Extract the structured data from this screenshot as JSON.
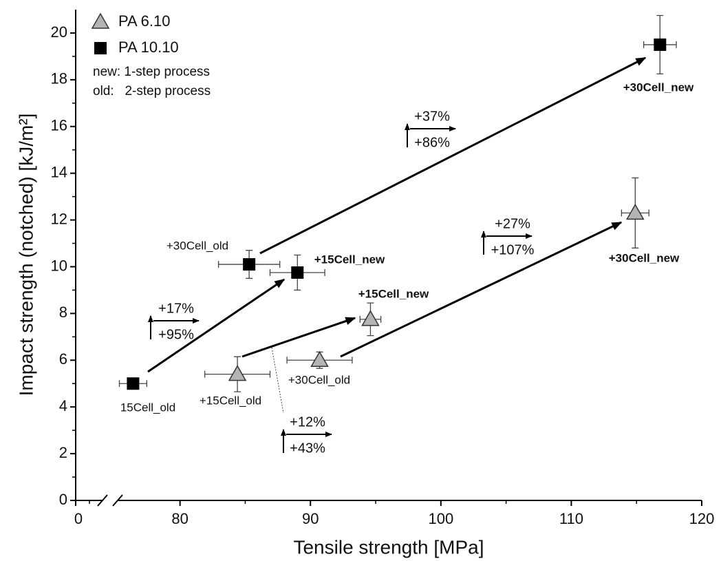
{
  "chart_data": {
    "type": "scatter",
    "x_label": "Tensile strength [MPa]",
    "y_label": "Impact strength (notched) [kJ/m²]",
    "xlim": [
      72,
      120
    ],
    "xticks": [
      80,
      90,
      100,
      110,
      120
    ],
    "x_axis_start_label": "0",
    "x_axis_break": true,
    "ylim": [
      0,
      21
    ],
    "yticks": [
      0,
      2,
      4,
      6,
      8,
      10,
      12,
      14,
      16,
      18,
      20
    ],
    "legend_position": "upper left",
    "legend_notes": [
      "new: 1-step process",
      "old:   2-step process"
    ],
    "series": [
      {
        "name": "PA 6.10",
        "marker": "triangle",
        "color": "#b4b4b4",
        "x": [
          84.4,
          90.7,
          94.6,
          114.9
        ],
        "values": [
          5.4,
          6.0,
          7.75,
          12.3
        ],
        "x_err": [
          2.5,
          2.5,
          0.8,
          1.05
        ],
        "y_err": [
          0.75,
          0.35,
          0.7,
          1.5
        ],
        "point_labels": [
          "+15Cell_old",
          "+30Cell_old",
          "+15Cell_new",
          "+30Cell_new"
        ]
      },
      {
        "name": "PA 10.10",
        "marker": "square",
        "color": "#000000",
        "x": [
          76.4,
          85.3,
          89.0,
          116.8
        ],
        "values": [
          5.0,
          10.1,
          9.75,
          19.5
        ],
        "x_err": [
          1.05,
          2.35,
          2.1,
          1.25
        ],
        "y_err": [
          0.2,
          0.6,
          0.75,
          1.25
        ],
        "point_labels": [
          "15Cell_old",
          "+30Cell_old",
          "+15Cell_new",
          "+30Cell_new"
        ]
      }
    ],
    "annotations": [
      "+17%",
      "+95%",
      "+37%",
      "+86%",
      "+27%",
      "+107%",
      "+12%",
      "+43%"
    ]
  }
}
